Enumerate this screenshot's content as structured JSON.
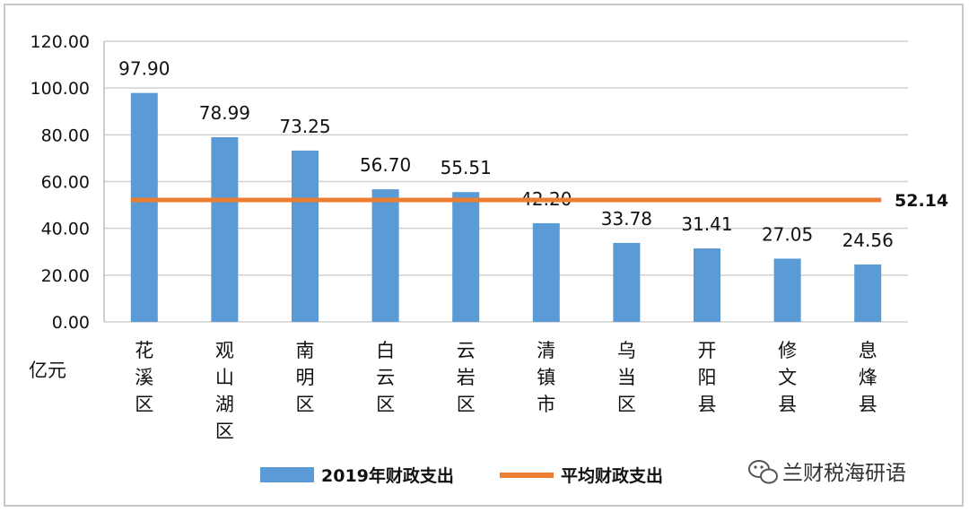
{
  "chart_data": {
    "type": "bar",
    "categories": [
      [
        "花",
        "溪",
        "区"
      ],
      [
        "观",
        "山",
        "湖",
        "区"
      ],
      [
        "南",
        "明",
        "区"
      ],
      [
        "白",
        "云",
        "区"
      ],
      [
        "云",
        "岩",
        "区"
      ],
      [
        "清",
        "镇",
        "市"
      ],
      [
        "乌",
        "当",
        "区"
      ],
      [
        "开",
        "阳",
        "县"
      ],
      [
        "修",
        "文",
        "县"
      ],
      [
        "息",
        "烽",
        "县"
      ]
    ],
    "series": [
      {
        "name": "2019年财政支出",
        "type": "bar",
        "color": "#5b9bd5",
        "values": [
          97.9,
          78.99,
          73.25,
          56.7,
          55.51,
          42.2,
          33.78,
          31.41,
          27.05,
          24.56
        ],
        "labels": [
          "97.90",
          "78.99",
          "73.25",
          "56.70",
          "55.51",
          "42.20",
          "33.78",
          "31.41",
          "27.05",
          "24.56"
        ]
      },
      {
        "name": "平均财政支出",
        "type": "line",
        "color": "#ed7d31",
        "value": 52.14,
        "label": "52.14"
      }
    ],
    "ylim": [
      0,
      120
    ],
    "yticks": [
      "0.00",
      "20.00",
      "40.00",
      "60.00",
      "80.00",
      "100.00",
      "120.00"
    ],
    "ylabel": "亿元",
    "grid": true,
    "legend": "bottom"
  },
  "watermark": {
    "text": "兰财税海研语",
    "icon": "wechat-icon"
  }
}
